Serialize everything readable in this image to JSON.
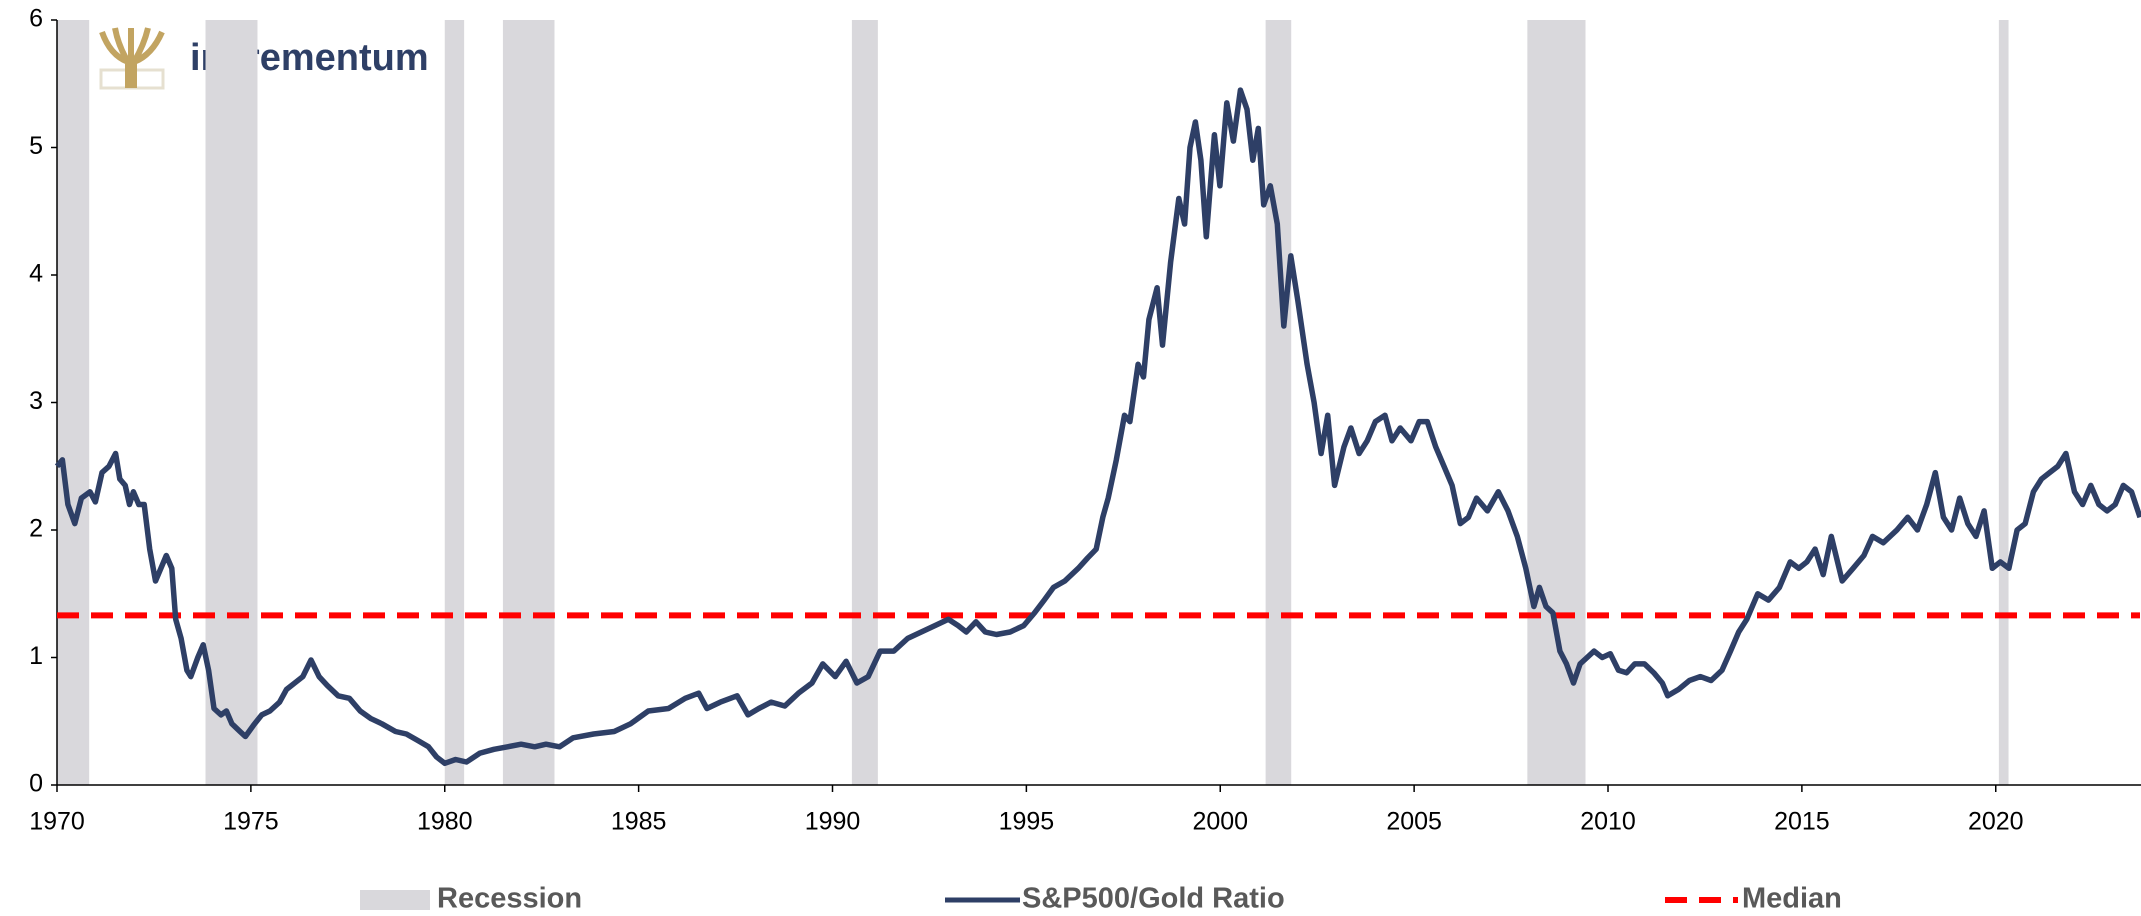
{
  "chart_data": {
    "type": "line",
    "logo": "incrementum",
    "x": [
      1970.0,
      1970.14,
      1970.28,
      1970.46,
      1970.63,
      1970.85,
      1970.99,
      1971.16,
      1971.34,
      1971.51,
      1971.62,
      1971.76,
      1971.87,
      1971.97,
      1972.11,
      1972.25,
      1972.39,
      1972.54,
      1972.68,
      1972.82,
      1972.96,
      1973.06,
      1973.2,
      1973.35,
      1973.45,
      1973.63,
      1973.77,
      1973.91,
      1974.05,
      1974.23,
      1974.37,
      1974.51,
      1974.72,
      1974.86,
      1975.07,
      1975.28,
      1975.49,
      1975.74,
      1975.92,
      1976.13,
      1976.34,
      1976.55,
      1976.76,
      1976.97,
      1977.25,
      1977.54,
      1977.82,
      1978.1,
      1978.38,
      1978.73,
      1979.01,
      1979.3,
      1979.58,
      1979.79,
      1980.0,
      1980.28,
      1980.56,
      1980.91,
      1981.27,
      1981.62,
      1981.97,
      1982.32,
      1982.61,
      1982.96,
      1983.31,
      1983.84,
      1984.37,
      1984.79,
      1985.25,
      1985.77,
      1986.2,
      1986.55,
      1986.76,
      1987.11,
      1987.54,
      1987.82,
      1988.1,
      1988.42,
      1988.77,
      1989.12,
      1989.47,
      1989.75,
      1990.07,
      1990.35,
      1990.63,
      1990.92,
      1991.23,
      1991.58,
      1991.94,
      1992.29,
      1992.64,
      1992.99,
      1993.24,
      1993.45,
      1993.7,
      1993.94,
      1994.23,
      1994.58,
      1994.93,
      1995.21,
      1995.46,
      1995.7,
      1995.99,
      1996.34,
      1996.58,
      1996.8,
      1996.97,
      1997.11,
      1997.32,
      1997.53,
      1997.67,
      1997.88,
      1998.02,
      1998.16,
      1998.37,
      1998.51,
      1998.72,
      1998.93,
      1999.08,
      1999.22,
      1999.36,
      1999.5,
      1999.64,
      1999.85,
      1999.99,
      2000.17,
      2000.34,
      2000.52,
      2000.69,
      2000.84,
      2000.98,
      2001.12,
      2001.29,
      2001.47,
      2001.64,
      2001.82,
      2002.0,
      2002.24,
      2002.42,
      2002.6,
      2002.77,
      2002.95,
      2003.19,
      2003.37,
      2003.58,
      2003.79,
      2004.0,
      2004.25,
      2004.43,
      2004.64,
      2004.92,
      2005.13,
      2005.34,
      2005.56,
      2005.77,
      2005.98,
      2006.19,
      2006.4,
      2006.61,
      2006.89,
      2007.17,
      2007.42,
      2007.66,
      2007.88,
      2008.09,
      2008.23,
      2008.4,
      2008.58,
      2008.76,
      2008.93,
      2009.11,
      2009.28,
      2009.46,
      2009.64,
      2009.85,
      2010.06,
      2010.27,
      2010.48,
      2010.69,
      2010.94,
      2011.18,
      2011.4,
      2011.54,
      2011.82,
      2012.1,
      2012.38,
      2012.66,
      2012.94,
      2013.16,
      2013.37,
      2013.58,
      2013.86,
      2014.14,
      2014.42,
      2014.7,
      2014.92,
      2015.13,
      2015.34,
      2015.55,
      2015.76,
      2016.04,
      2016.32,
      2016.6,
      2016.82,
      2017.1,
      2017.45,
      2017.73,
      2017.98,
      2018.22,
      2018.44,
      2018.65,
      2018.86,
      2019.07,
      2019.28,
      2019.49,
      2019.7,
      2019.91,
      2020.12,
      2020.34,
      2020.55,
      2020.76,
      2020.97,
      2021.18,
      2021.39,
      2021.6,
      2021.81,
      2022.03,
      2022.24,
      2022.45,
      2022.66,
      2022.87,
      2023.08,
      2023.29,
      2023.5,
      2023.72
    ],
    "series": [
      {
        "name": "S&P500/Gold Ratio",
        "color": "#2e3f66",
        "values": [
          2.5,
          2.55,
          2.2,
          2.05,
          2.25,
          2.3,
          2.22,
          2.45,
          2.5,
          2.6,
          2.4,
          2.35,
          2.2,
          2.3,
          2.2,
          2.2,
          1.85,
          1.6,
          1.7,
          1.8,
          1.7,
          1.3,
          1.15,
          0.9,
          0.85,
          1.0,
          1.1,
          0.9,
          0.6,
          0.55,
          0.58,
          0.48,
          0.42,
          0.38,
          0.47,
          0.55,
          0.58,
          0.65,
          0.75,
          0.8,
          0.85,
          0.98,
          0.85,
          0.78,
          0.7,
          0.68,
          0.58,
          0.52,
          0.48,
          0.42,
          0.4,
          0.35,
          0.3,
          0.22,
          0.17,
          0.2,
          0.18,
          0.25,
          0.28,
          0.3,
          0.32,
          0.3,
          0.32,
          0.3,
          0.37,
          0.4,
          0.42,
          0.48,
          0.58,
          0.6,
          0.68,
          0.72,
          0.6,
          0.65,
          0.7,
          0.55,
          0.6,
          0.65,
          0.62,
          0.72,
          0.8,
          0.95,
          0.85,
          0.97,
          0.8,
          0.85,
          1.05,
          1.05,
          1.15,
          1.2,
          1.25,
          1.3,
          1.25,
          1.2,
          1.28,
          1.2,
          1.18,
          1.2,
          1.25,
          1.35,
          1.45,
          1.55,
          1.6,
          1.7,
          1.78,
          1.85,
          2.1,
          2.25,
          2.55,
          2.9,
          2.85,
          3.3,
          3.2,
          3.65,
          3.9,
          3.45,
          4.1,
          4.6,
          4.4,
          5.0,
          5.2,
          4.9,
          4.3,
          5.1,
          4.7,
          5.35,
          5.05,
          5.45,
          5.3,
          4.9,
          5.15,
          4.55,
          4.7,
          4.4,
          3.6,
          4.15,
          3.8,
          3.3,
          3.0,
          2.6,
          2.9,
          2.35,
          2.65,
          2.8,
          2.6,
          2.7,
          2.85,
          2.9,
          2.7,
          2.8,
          2.7,
          2.85,
          2.85,
          2.65,
          2.5,
          2.35,
          2.05,
          2.1,
          2.25,
          2.15,
          2.3,
          2.15,
          1.95,
          1.7,
          1.4,
          1.55,
          1.4,
          1.35,
          1.05,
          0.95,
          0.8,
          0.95,
          1.0,
          1.05,
          1.0,
          1.03,
          0.9,
          0.88,
          0.95,
          0.95,
          0.88,
          0.8,
          0.7,
          0.75,
          0.82,
          0.85,
          0.82,
          0.9,
          1.05,
          1.2,
          1.3,
          1.5,
          1.45,
          1.55,
          1.75,
          1.7,
          1.75,
          1.85,
          1.65,
          1.95,
          1.6,
          1.7,
          1.8,
          1.95,
          1.9,
          2.0,
          2.1,
          2.0,
          2.2,
          2.45,
          2.1,
          2.0,
          2.25,
          2.05,
          1.95,
          2.15,
          1.7,
          1.75,
          1.7,
          2.0,
          2.05,
          2.3,
          2.4,
          2.45,
          2.5,
          2.6,
          2.3,
          2.2,
          2.35,
          2.2,
          2.15,
          2.2,
          2.35,
          2.3,
          2.1
        ]
      }
    ],
    "recession": {
      "name": "Recession",
      "color": "#d9d8dc",
      "spans": [
        [
          1970,
          1970.83
        ],
        [
          1973.83,
          1975.17
        ],
        [
          1980.0,
          1980.5
        ],
        [
          1981.5,
          1982.83
        ],
        [
          1990.5,
          1991.17
        ],
        [
          2001.17,
          2001.83
        ],
        [
          2007.92,
          2009.42
        ],
        [
          2020.08,
          2020.33
        ]
      ]
    },
    "median": {
      "name": "Median",
      "color": "#ff0000",
      "value": 1.33
    },
    "xlim": [
      1970,
      2023.72
    ],
    "xticks": [
      1970,
      1975,
      1980,
      1985,
      1990,
      1995,
      2000,
      2005,
      2010,
      2015,
      2020
    ],
    "ylim": [
      0,
      6
    ],
    "yticks": [
      0,
      1,
      2,
      3,
      4,
      5,
      6
    ]
  }
}
